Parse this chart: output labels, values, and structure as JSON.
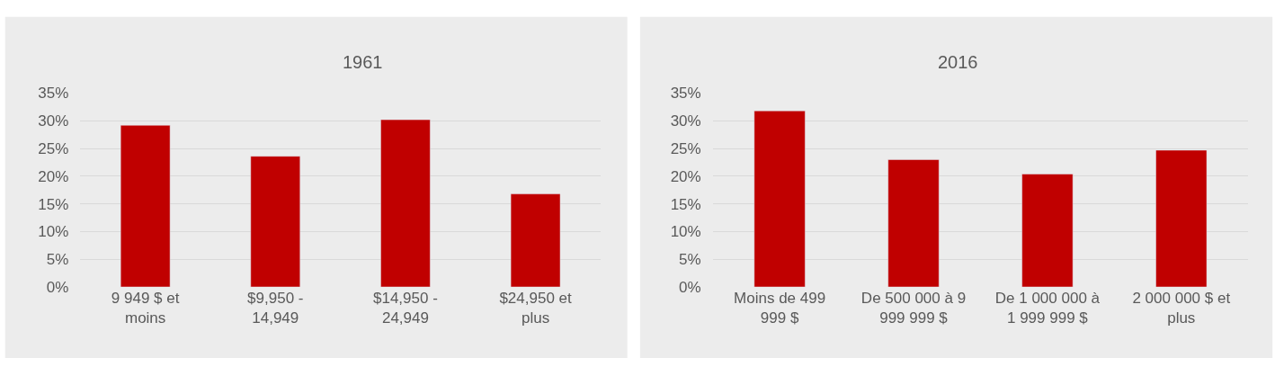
{
  "chart_data": [
    {
      "type": "bar",
      "title": "1961",
      "categories": [
        "9 949 $ et moins",
        "$9,950 - 14,949",
        "$14,950 - 24,949",
        "$24,950 et plus"
      ],
      "values": [
        29.2,
        23.6,
        30.2,
        16.8
      ],
      "color": "#c00000",
      "ylim": [
        0,
        35
      ],
      "yticks": [
        {
          "value": 0,
          "label": "0%"
        },
        {
          "value": 5,
          "label": "5%"
        },
        {
          "value": 10,
          "label": "10%"
        },
        {
          "value": 15,
          "label": "15%"
        },
        {
          "value": 20,
          "label": "20%"
        },
        {
          "value": 25,
          "label": "25%"
        },
        {
          "value": 30,
          "label": "30%"
        },
        {
          "value": 35,
          "label": "35%"
        }
      ],
      "grid": "y"
    },
    {
      "type": "bar",
      "title": "2016",
      "categories": [
        "Moins de 499 999 $",
        "De 500 000 à 9 999 999 $",
        "De 1 000 000 à 1 999 999 $",
        "2 000 000 $ et plus"
      ],
      "values": [
        31.8,
        23.0,
        20.4,
        24.7
      ],
      "color": "#c00000",
      "ylim": [
        0,
        35
      ],
      "yticks": [
        {
          "value": 0,
          "label": "0%"
        },
        {
          "value": 5,
          "label": "5%"
        },
        {
          "value": 10,
          "label": "10%"
        },
        {
          "value": 15,
          "label": "15%"
        },
        {
          "value": 20,
          "label": "20%"
        },
        {
          "value": 25,
          "label": "25%"
        },
        {
          "value": 30,
          "label": "30%"
        },
        {
          "value": 35,
          "label": "35%"
        }
      ],
      "grid": "y"
    }
  ]
}
